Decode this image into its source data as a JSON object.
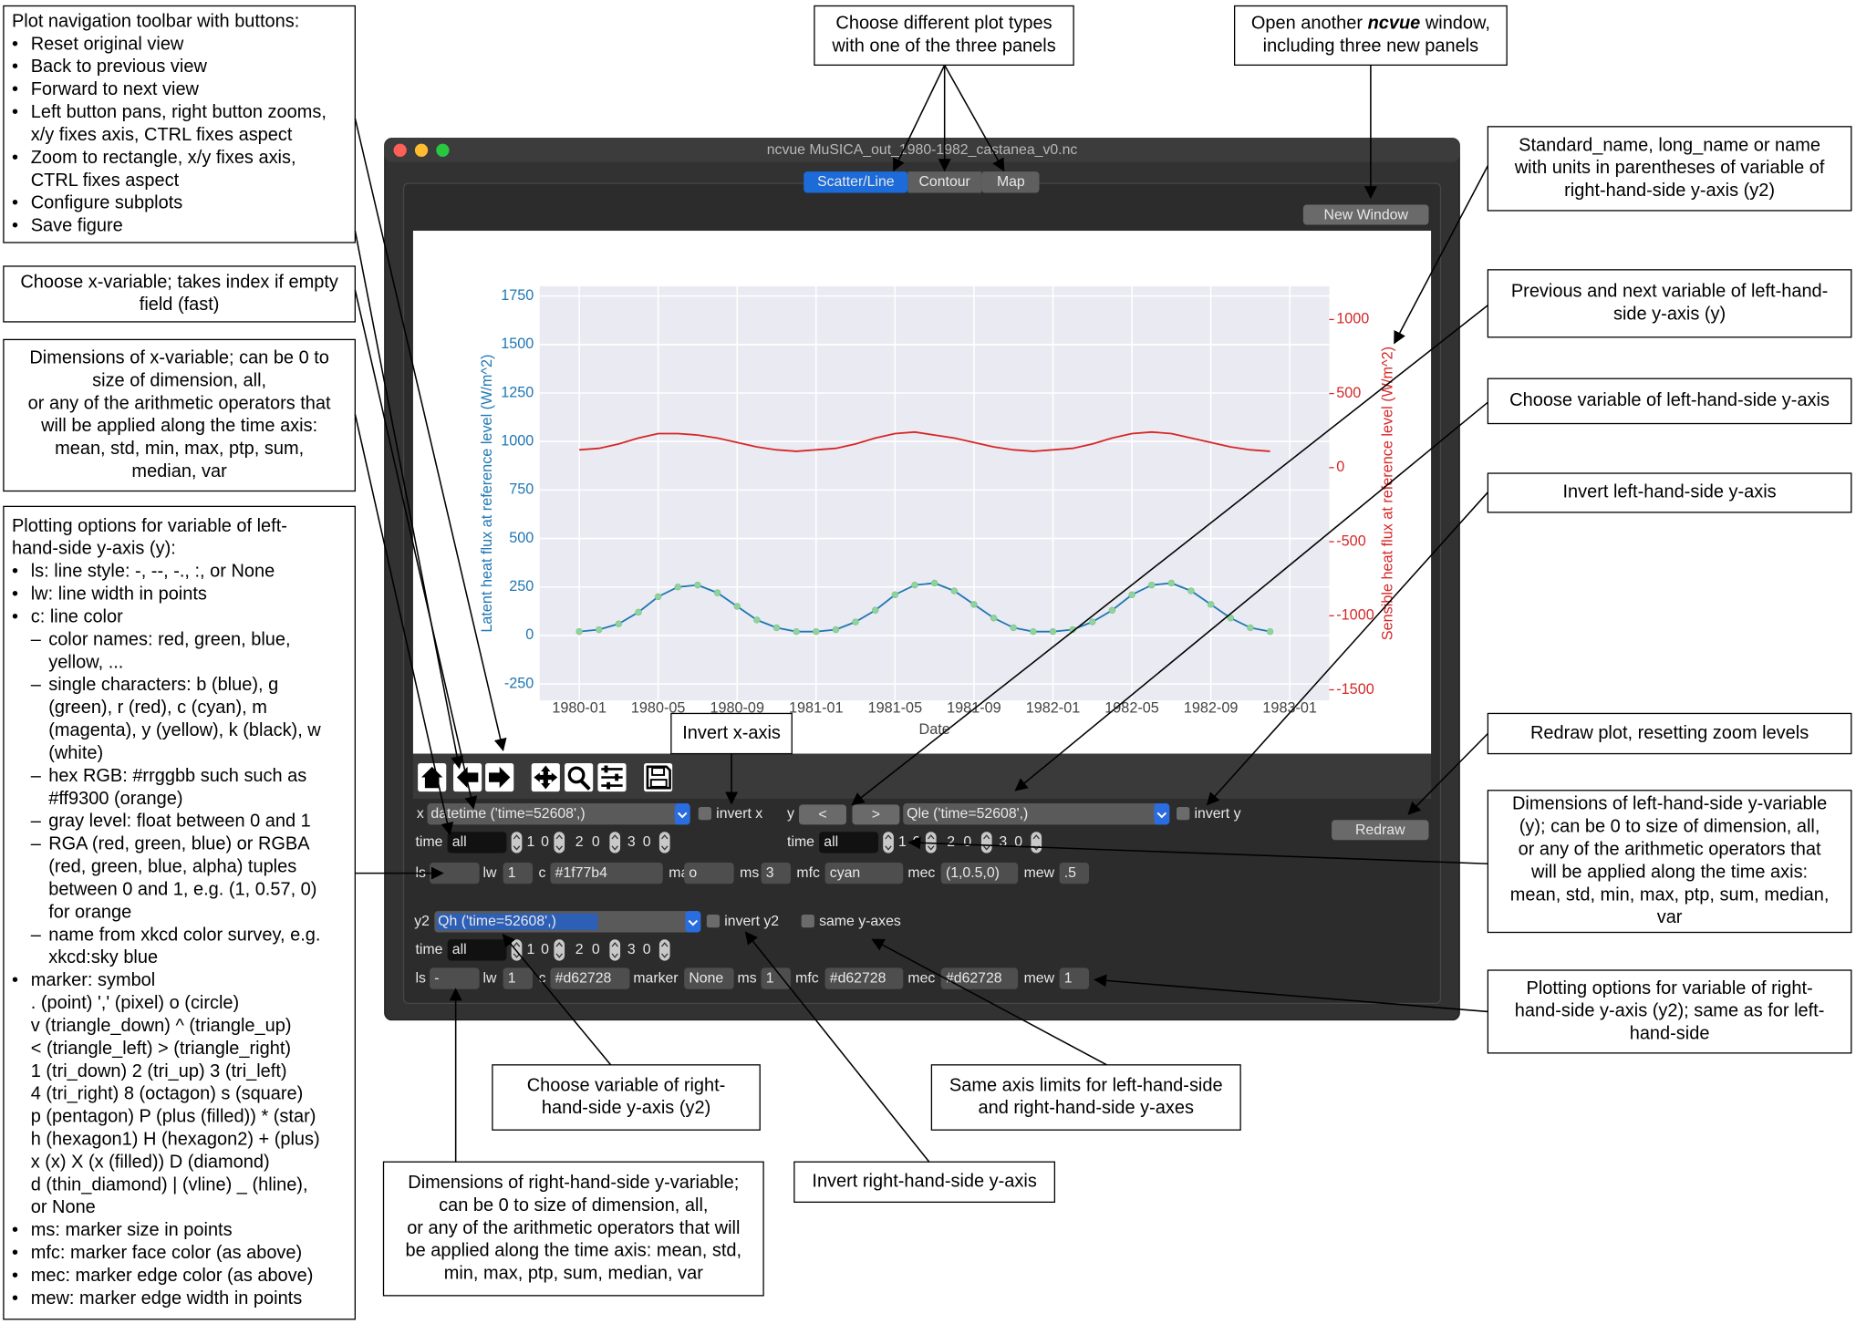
{
  "annotations": [
    {
      "lines": [
        "Plot navigation toolbar with buttons:",
        {
          "bullet": "•",
          "lines": [
            "Reset original view"
          ]
        },
        {
          "bullet": "•",
          "lines": [
            "Back to previous view"
          ]
        },
        {
          "bullet": "•",
          "lines": [
            "Forward to next view"
          ]
        },
        {
          "bullet": "•",
          "lines": [
            "Left button pans, right button zooms,",
            "x/y fixes axis, CTRL fixes aspect"
          ]
        },
        {
          "bullet": "•",
          "lines": [
            "Zoom to rectangle, x/y fixes axis,",
            "CTRL fixes aspect"
          ]
        },
        {
          "bullet": "•",
          "lines": [
            "Configure subplots"
          ]
        },
        {
          "bullet": "•",
          "lines": [
            "Save figure"
          ]
        }
      ]
    },
    {
      "lines": [
        "Choose x-variable; takes index if empty",
        "field (fast)"
      ]
    },
    {
      "lines": [
        "Dimensions of x-variable; can be 0 to",
        "size of dimension, all,",
        "or any of the arithmetic operators that",
        "will be applied along the time axis:",
        "mean, std, min, max, ptp, sum,",
        "median, var"
      ]
    },
    {
      "lines": [
        "Plotting options for variable of left-",
        "hand-side y-axis (y):",
        {
          "bullet": "•",
          "lines": [
            "ls: line style: -, --, -., :, or None"
          ]
        },
        {
          "bullet": "•",
          "lines": [
            "lw: line width in points"
          ]
        },
        {
          "bullet": "•",
          "lines": [
            "c: line color"
          ],
          "sub": [
            {
              "bullet": "–",
              "lines": [
                "color names: red, green, blue,",
                "yellow, ..."
              ]
            },
            {
              "bullet": "–",
              "lines": [
                "single characters: b (blue), g",
                "(green), r (red), c (cyan), m",
                "(magenta), y (yellow), k (black), w",
                "(white)"
              ]
            },
            {
              "bullet": "–",
              "lines": [
                "hex RGB: #rrggbb such such as",
                "#ff9300 (orange)"
              ]
            },
            {
              "bullet": "–",
              "lines": [
                "gray level: float between 0 and 1"
              ]
            },
            {
              "bullet": "–",
              "lines": [
                "RGA (red, green, blue) or RGBA",
                "(red, green, blue, alpha) tuples",
                "between 0 and 1, e.g. (1, 0.57, 0)",
                "for orange"
              ]
            },
            {
              "bullet": "–",
              "lines": [
                "name from xkcd color survey, e.g.",
                "xkcd:sky blue"
              ]
            }
          ]
        },
        {
          "bullet": "•",
          "lines": [
            "marker: symbol",
            ". (point) ',' (pixel) o (circle)",
            "v (triangle_down) ^ (triangle_up)",
            "< (triangle_left) > (triangle_right)",
            "1 (tri_down) 2 (tri_up) 3 (tri_left)",
            "4 (tri_right) 8 (octagon) s (square)",
            "p (pentagon) P (plus (filled)) * (star)",
            "h (hexagon1) H (hexagon2) + (plus)",
            "x (x) X (x (filled)) D (diamond)",
            "d (thin_diamond) | (vline) _ (hline),",
            "or None"
          ]
        },
        {
          "bullet": "•",
          "lines": [
            "ms: marker size in points"
          ]
        },
        {
          "bullet": "•",
          "lines": [
            "mfc: marker face color (as above)"
          ]
        },
        {
          "bullet": "•",
          "lines": [
            "mec: marker edge color (as above)"
          ]
        },
        {
          "bullet": "•",
          "lines": [
            "mew: marker edge width in points"
          ]
        }
      ]
    },
    {
      "lines": [
        "Choose different plot types",
        "with one of the three panels"
      ]
    },
    {
      "lines": [
        {
          "parts": [
            "Open another ",
            "ncvue",
            " window,"
          ]
        },
        "including three new panels"
      ]
    },
    {
      "lines": [
        "Standard_name, long_name or name",
        "with units in parentheses of variable of",
        "right-hand-side y-axis (y2)"
      ]
    },
    {
      "lines": [
        "Previous and next variable of left-hand-",
        "side y-axis (y)"
      ]
    },
    {
      "lines": [
        "Choose variable of left-hand-side y-axis"
      ]
    },
    {
      "lines": [
        "Invert left-hand-side y-axis"
      ]
    },
    {
      "lines": [
        "Redraw plot, resetting zoom levels"
      ]
    },
    {
      "lines": [
        "Dimensions of left-hand-side y-variable",
        "(y); can be 0 to size of dimension, all,",
        "or any of the arithmetic operators that",
        "will be applied along the time axis:",
        "mean, std, min, max, ptp, sum, median,",
        "var"
      ]
    },
    {
      "lines": [
        "Plotting options for variable of right-",
        "hand-side y-axis (y2); same as for left-",
        "hand-side"
      ]
    },
    {
      "lines": [
        "Invert x-axis"
      ]
    },
    {
      "lines": [
        "Choose variable of right-",
        "hand-side y-axis (y2)"
      ]
    },
    {
      "lines": [
        "Same axis limits for left-hand-side",
        "and right-hand-side y-axes"
      ]
    },
    {
      "lines": [
        "Dimensions of right-hand-side y-variable;",
        "can be 0 to size of dimension, all,",
        "or any of the arithmetic operators that will",
        "be applied along the time axis: mean, std,",
        "min, max, ptp, sum, median, var"
      ]
    },
    {
      "lines": [
        "Invert right-hand-side y-axis"
      ]
    }
  ],
  "window": {
    "title": "ncvue MuSICA_out_1980-1982_castanea_v0.nc",
    "tabs": [
      "Scatter/Line",
      "Contour",
      "Map"
    ],
    "new_window": "New Window",
    "redraw": "Redraw",
    "controls": {
      "x": {
        "label": "x",
        "variable": "datetime ('time=52608',)",
        "invert": "invert x",
        "dims": {
          "label": "time",
          "value": "all",
          "others": [
            "1",
            "0",
            "2",
            "0",
            "3",
            "0"
          ]
        }
      },
      "y": {
        "label": "y",
        "prev": "<",
        "next": ">",
        "variable": "Qle ('time=52608',)",
        "invert": "invert y",
        "dims": {
          "label": "time",
          "value": "all",
          "others": [
            "1",
            "0",
            "2",
            "0",
            "3",
            "0"
          ]
        },
        "options": [
          {
            "label": "ls",
            "value": "-"
          },
          {
            "label": "lw",
            "value": "1"
          },
          {
            "label": "c",
            "value": "#1f77b4"
          },
          {
            "label": "marker",
            "value": "o"
          },
          {
            "label": "ms",
            "value": "3"
          },
          {
            "label": "mfc",
            "value": "cyan"
          },
          {
            "label": "mec",
            "value": "(1,0.5,0)"
          },
          {
            "label": "mew",
            "value": ".5"
          }
        ]
      },
      "y2": {
        "label": "y2",
        "variable": "Qh ('time=52608',)",
        "invert": "invert y2",
        "same": "same y-axes",
        "dims": {
          "label": "time",
          "value": "all",
          "others": [
            "1",
            "0",
            "2",
            "0",
            "3",
            "0"
          ]
        },
        "options": [
          {
            "label": "ls",
            "value": "-"
          },
          {
            "label": "lw",
            "value": "1"
          },
          {
            "label": "c",
            "value": "#d62728"
          },
          {
            "label": "marker",
            "value": "None"
          },
          {
            "label": "ms",
            "value": "1"
          },
          {
            "label": "mfc",
            "value": "#d62728"
          },
          {
            "label": "mec",
            "value": "#d62728"
          },
          {
            "label": "mew",
            "value": "1"
          }
        ]
      }
    }
  },
  "chart_data": {
    "type": "line",
    "xlabel": "Date",
    "ylabel": "Latent heat flux at reference level (W/m^2)",
    "y2label": "Sensible heat flux at reference level (W/m^2)",
    "xlim": [
      "1979-11",
      "1983-03"
    ],
    "xticks": [
      "1980-01",
      "1980-05",
      "1980-09",
      "1981-01",
      "1981-05",
      "1981-09",
      "1982-01",
      "1982-05",
      "1982-09",
      "1983-01"
    ],
    "ylim": [
      -335,
      1800
    ],
    "yticks": [
      -250,
      0,
      250,
      500,
      750,
      1000,
      1250,
      1500,
      1750
    ],
    "y2lim": [
      -1572,
      1224
    ],
    "y2ticks": [
      -1500,
      -1000,
      -500,
      0,
      500,
      1000
    ],
    "grid": true,
    "x": [
      "1980-01",
      "1980-02",
      "1980-03",
      "1980-04",
      "1980-05",
      "1980-06",
      "1980-07",
      "1980-08",
      "1980-09",
      "1980-10",
      "1980-11",
      "1980-12",
      "1981-01",
      "1981-02",
      "1981-03",
      "1981-04",
      "1981-05",
      "1981-06",
      "1981-07",
      "1981-08",
      "1981-09",
      "1981-10",
      "1981-11",
      "1981-12",
      "1982-01",
      "1982-02",
      "1982-03",
      "1982-04",
      "1982-05",
      "1982-06",
      "1982-07",
      "1982-08",
      "1982-09",
      "1982-10",
      "1982-11",
      "1982-12"
    ],
    "series": [
      {
        "color": "#1f77b4",
        "marker_color": "#8fd49c",
        "values": [
          20,
          30,
          60,
          120,
          200,
          250,
          260,
          220,
          150,
          80,
          40,
          20,
          20,
          30,
          70,
          130,
          210,
          260,
          270,
          230,
          160,
          90,
          40,
          20,
          20,
          30,
          70,
          130,
          210,
          260,
          270,
          230,
          160,
          90,
          40,
          20
        ]
      },
      {
        "color": "#d62728",
        "axis": "y2",
        "values": [
          120,
          130,
          160,
          200,
          230,
          230,
          220,
          200,
          170,
          140,
          120,
          110,
          120,
          130,
          160,
          200,
          230,
          240,
          220,
          200,
          170,
          140,
          120,
          110,
          120,
          130,
          160,
          200,
          230,
          240,
          230,
          200,
          170,
          140,
          120,
          110
        ]
      }
    ]
  }
}
